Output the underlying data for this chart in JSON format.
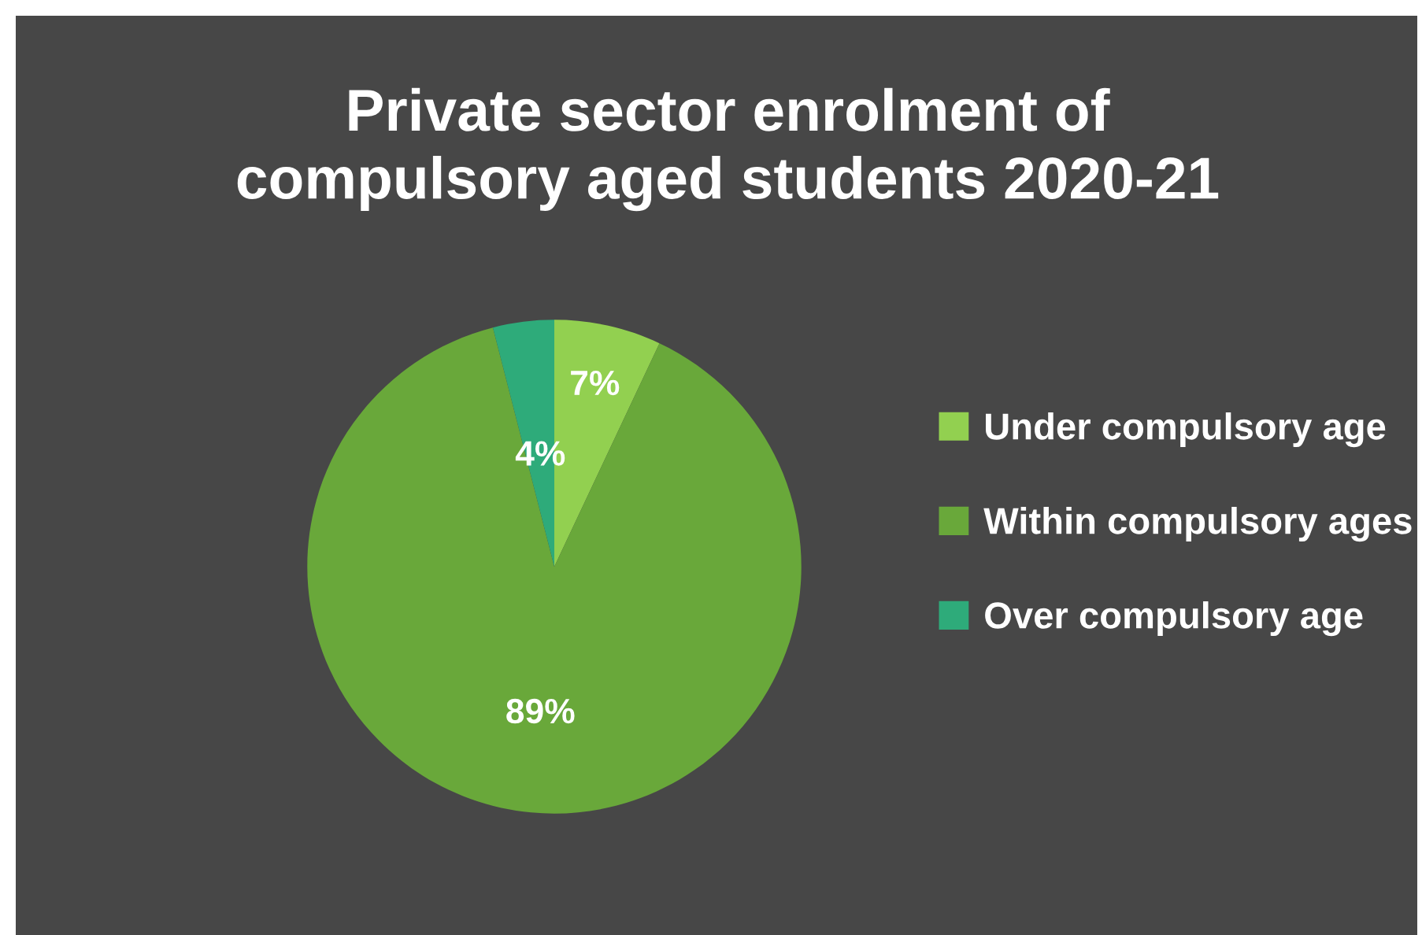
{
  "chart_data": {
    "type": "pie",
    "title": "Private sector enrolment of\ncompulsory aged students 2020-21",
    "categories": [
      "Under compulsory age",
      "Within compulsory ages",
      "Over compulsory age"
    ],
    "values": [
      7,
      89,
      4
    ],
    "colors": [
      "#92d050",
      "#69a83a",
      "#2eab7a"
    ],
    "value_labels": [
      "7%",
      "89%",
      "4%"
    ],
    "legend": "right"
  }
}
